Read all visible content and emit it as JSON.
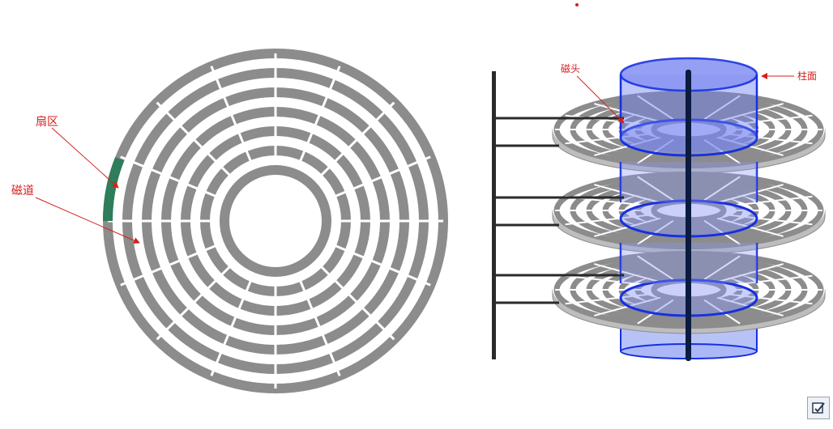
{
  "labels": {
    "sector": "扇区",
    "track": "磁道",
    "head": "磁头",
    "cylinder": "柱面"
  },
  "colors": {
    "track": "#8c8c8c",
    "sector_highlight": "#2e7d5b",
    "label": "#d42020",
    "cylinder_fill": "#7b86f0",
    "cylinder_stroke": "#1730e0",
    "arm": "#2a2a2a",
    "spindle": "#0a1a40"
  },
  "icons": {
    "corner_button": "checkbox-icon"
  }
}
